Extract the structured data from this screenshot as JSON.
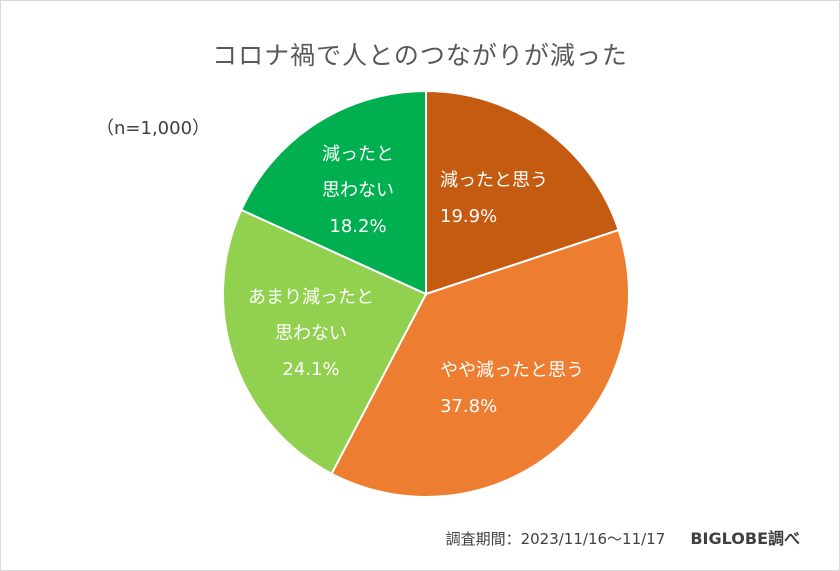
{
  "chart_data": {
    "type": "pie",
    "title": "コロナ禍で人とのつながりが減った",
    "sample_note": "（n=1,000）",
    "slices": [
      {
        "label_lines": [
          "減ったと思う"
        ],
        "value": 19.9,
        "value_label": "19.9%",
        "color": "#c55a11"
      },
      {
        "label_lines": [
          "やや減ったと思う"
        ],
        "value": 37.8,
        "value_label": "37.8%",
        "color": "#ed7d31"
      },
      {
        "label_lines": [
          "あまり減ったと",
          "思わない"
        ],
        "value": 24.1,
        "value_label": "24.1%",
        "color": "#92d050"
      },
      {
        "label_lines": [
          "減ったと",
          "思わない"
        ],
        "value": 18.2,
        "value_label": "18.2%",
        "color": "#00b050"
      }
    ]
  },
  "footer": {
    "period": "調査期間：2023/11/16〜11/17",
    "source": "BIGLOBE調べ"
  }
}
